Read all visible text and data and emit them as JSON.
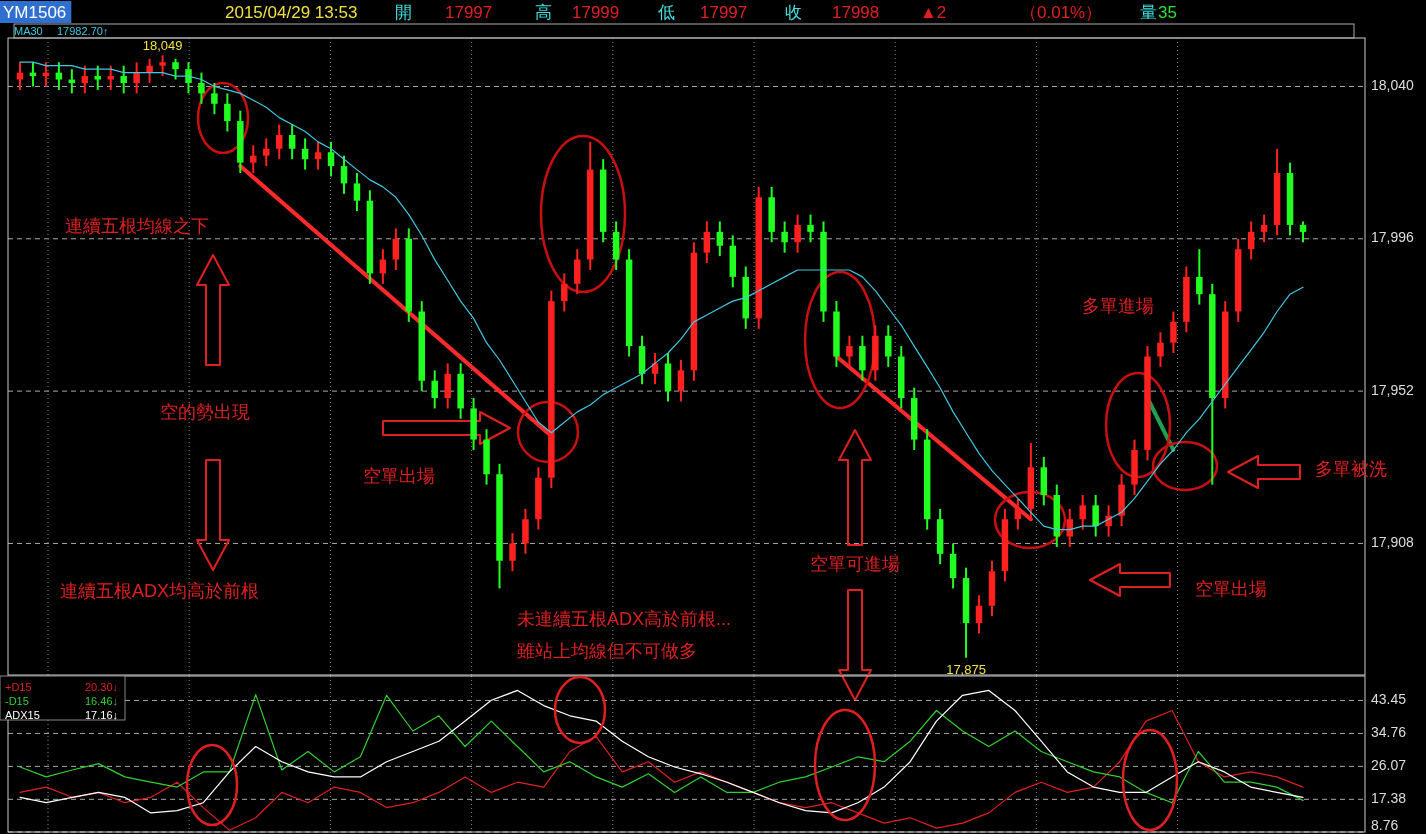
{
  "chart_data": [
    {
      "type": "candlestick",
      "title": "YM1506",
      "subtitle": "2015/04/29 13:53",
      "categories": [
        null,
        null,
        null,
        null,
        null,
        null,
        null,
        null,
        null,
        null,
        null,
        null,
        null,
        null,
        null,
        null,
        null,
        null,
        null,
        null,
        null,
        null,
        null,
        null,
        null,
        null,
        null,
        null,
        null,
        null,
        null,
        null,
        null,
        null,
        null,
        null,
        null,
        null,
        null,
        null,
        null,
        null,
        null,
        null,
        null,
        null,
        null,
        null,
        null,
        null,
        null,
        null,
        null,
        null,
        null,
        null,
        null,
        null,
        null,
        null,
        null,
        null,
        null,
        null,
        null,
        null,
        null,
        null,
        null,
        null,
        null,
        null,
        null,
        null,
        null,
        null,
        null,
        null,
        null,
        null,
        null,
        null,
        null,
        null,
        null,
        null,
        null,
        null,
        null,
        null,
        null,
        null,
        null,
        null,
        null,
        null,
        null,
        null,
        null,
        null
      ],
      "ohlc": [
        [
          18042,
          18047,
          18039,
          18044
        ],
        [
          18044,
          18047,
          18040,
          18043
        ],
        [
          18043,
          18047,
          18040,
          18044
        ],
        [
          18044,
          18047,
          18039,
          18042
        ],
        [
          18042,
          18045,
          18038,
          18041
        ],
        [
          18041,
          18046,
          18038,
          18043
        ],
        [
          18043,
          18046,
          18039,
          18042
        ],
        [
          18042,
          18046,
          18039,
          18043
        ],
        [
          18043,
          18046,
          18038,
          18041
        ],
        [
          18041,
          18047,
          18038,
          18044
        ],
        [
          18044,
          18048,
          18041,
          18046
        ],
        [
          18046,
          18049,
          18043,
          18047
        ],
        [
          18047,
          18048,
          18042,
          18045
        ],
        [
          18045,
          18047,
          18038,
          18041
        ],
        [
          18041,
          18044,
          18035,
          18038
        ],
        [
          18038,
          18041,
          18032,
          18035
        ],
        [
          18035,
          18038,
          18027,
          18030
        ],
        [
          18030,
          18033,
          18015,
          18018
        ],
        [
          18018,
          18023,
          18015,
          18020
        ],
        [
          18020,
          18025,
          18017,
          18022
        ],
        [
          18022,
          18029,
          18019,
          18026
        ],
        [
          18026,
          18029,
          18019,
          18022
        ],
        [
          18022,
          18025,
          18016,
          18019
        ],
        [
          18019,
          18024,
          18016,
          18021
        ],
        [
          18021,
          18024,
          18014,
          18017
        ],
        [
          18017,
          18020,
          18009,
          18012
        ],
        [
          18012,
          18015,
          18004,
          18007
        ],
        [
          18007,
          18010,
          17983,
          17986
        ],
        [
          17986,
          17993,
          17983,
          17990
        ],
        [
          17990,
          17999,
          17987,
          17996
        ],
        [
          17996,
          17999,
          17972,
          17975
        ],
        [
          17975,
          17978,
          17952,
          17955
        ],
        [
          17955,
          17958,
          17947,
          17950
        ],
        [
          17950,
          17960,
          17947,
          17957
        ],
        [
          17957,
          17960,
          17944,
          17947
        ],
        [
          17947,
          17950,
          17935,
          17938
        ],
        [
          17938,
          17941,
          17925,
          17928
        ],
        [
          17928,
          17931,
          17895,
          17903
        ],
        [
          17903,
          17911,
          17900,
          17908
        ],
        [
          17908,
          17918,
          17905,
          17915
        ],
        [
          17915,
          17930,
          17912,
          17927
        ],
        [
          17927,
          17981,
          17924,
          17978
        ],
        [
          17978,
          17986,
          17975,
          17983
        ],
        [
          17983,
          17993,
          17980,
          17990
        ],
        [
          17990,
          18024,
          17987,
          18016
        ],
        [
          18016,
          18019,
          17995,
          17998
        ],
        [
          17998,
          18001,
          17987,
          17990
        ],
        [
          17990,
          17993,
          17962,
          17965
        ],
        [
          17965,
          17968,
          17954,
          17957
        ],
        [
          17957,
          17963,
          17954,
          17960
        ],
        [
          17960,
          17963,
          17949,
          17952
        ],
        [
          17952,
          17961,
          17949,
          17958
        ],
        [
          17958,
          17995,
          17955,
          17992
        ],
        [
          17992,
          18001,
          17989,
          17998
        ],
        [
          17998,
          18001,
          17991,
          17994
        ],
        [
          17994,
          17997,
          17982,
          17985
        ],
        [
          17985,
          17988,
          17970,
          17973
        ],
        [
          17973,
          18011,
          17970,
          18008
        ],
        [
          18008,
          18011,
          17995,
          17998
        ],
        [
          17998,
          18001,
          17992,
          17995
        ],
        [
          17995,
          18003,
          17992,
          18000
        ],
        [
          18000,
          18003,
          17995,
          17998
        ],
        [
          17998,
          18001,
          17972,
          17975
        ],
        [
          17975,
          17978,
          17959,
          17962
        ],
        [
          17962,
          17968,
          17959,
          17965
        ],
        [
          17965,
          17968,
          17955,
          17958
        ],
        [
          17958,
          17971,
          17955,
          17968
        ],
        [
          17968,
          17971,
          17959,
          17962
        ],
        [
          17962,
          17965,
          17947,
          17950
        ],
        [
          17950,
          17953,
          17935,
          17938
        ],
        [
          17938,
          17941,
          17912,
          17915
        ],
        [
          17915,
          17918,
          17902,
          17905
        ],
        [
          17905,
          17908,
          17895,
          17898
        ],
        [
          17898,
          17901,
          17875,
          17885
        ],
        [
          17885,
          17893,
          17882,
          17890
        ],
        [
          17890,
          17903,
          17887,
          17900
        ],
        [
          17900,
          17918,
          17897,
          17915
        ],
        [
          17915,
          17921,
          17912,
          17918
        ],
        [
          17918,
          17937,
          17915,
          17930
        ],
        [
          17930,
          17933,
          17919,
          17922
        ],
        [
          17922,
          17925,
          17907,
          17910
        ],
        [
          17910,
          17918,
          17907,
          17915
        ],
        [
          17915,
          17922,
          17912,
          17919
        ],
        [
          17919,
          17922,
          17910,
          17913
        ],
        [
          17913,
          17919,
          17910,
          17916
        ],
        [
          17916,
          17928,
          17913,
          17925
        ],
        [
          17925,
          17938,
          17922,
          17935
        ],
        [
          17935,
          17965,
          17932,
          17962
        ],
        [
          17962,
          17969,
          17959,
          17966
        ],
        [
          17966,
          17975,
          17963,
          17972
        ],
        [
          17972,
          17988,
          17969,
          17985
        ],
        [
          17985,
          17993,
          17977,
          17980
        ],
        [
          17980,
          17983,
          17925,
          17950
        ],
        [
          17950,
          17978,
          17947,
          17975
        ],
        [
          17975,
          17996,
          17972,
          17993
        ],
        [
          17993,
          18001,
          17990,
          17998
        ],
        [
          17998,
          18003,
          17995,
          18000
        ],
        [
          18000,
          18022,
          17997,
          18015
        ],
        [
          18015,
          18018,
          17997,
          18000
        ],
        [
          18000,
          18001,
          17995,
          17998
        ]
      ],
      "series": [
        {
          "name": "MA30",
          "type": "line",
          "color": "#40c8e0",
          "values": [
            18047,
            18047,
            18046,
            18046,
            18046,
            18045,
            18045,
            18045,
            18044,
            18044,
            18044,
            18044,
            18043,
            18043,
            18042,
            18040,
            18039,
            18038,
            18036,
            18034,
            18031,
            18029,
            18027,
            18024,
            18022,
            18019,
            18016,
            18013,
            18011,
            18008,
            18003,
            17997,
            17990,
            17984,
            17978,
            17973,
            17966,
            17961,
            17955,
            17949,
            17943,
            17940,
            17943,
            17946,
            17948,
            17951,
            17953,
            17955,
            17957,
            17960,
            17963,
            17967,
            17972,
            17974,
            17976,
            17978,
            17979,
            17981,
            17983,
            17985,
            17987,
            17987,
            17987,
            17987,
            17987,
            17985,
            17981,
            17976,
            17971,
            17965,
            17959,
            17953,
            17946,
            17940,
            17934,
            17929,
            17925,
            17921,
            17917,
            17913,
            17912,
            17912,
            17913,
            17913,
            17915,
            17917,
            17921,
            17926,
            17931,
            17935,
            17940,
            17944,
            17949,
            17954,
            17959,
            17964,
            17969,
            17975,
            17980,
            17982
          ]
        },
        {
          "type": "line",
          "color": "#ff2a2a",
          "values": [
            null,
            null,
            null,
            null,
            null,
            null,
            null,
            null,
            null,
            null,
            null,
            null,
            null,
            null,
            null,
            null,
            null,
            18017,
            null,
            null,
            null,
            null,
            null,
            null,
            null,
            null,
            null,
            null,
            null,
            null,
            null,
            null,
            null,
            null,
            null,
            null,
            null,
            null,
            null,
            null,
            null,
            17939,
            null,
            null,
            null,
            null,
            null,
            null,
            null,
            null,
            null,
            null,
            null,
            null,
            null,
            null,
            null,
            null,
            null,
            null,
            null,
            null,
            null,
            null,
            null,
            null,
            null,
            null,
            null,
            null,
            null,
            null,
            null,
            null,
            null,
            null,
            null,
            null,
            null,
            null,
            null,
            null,
            null,
            null,
            null,
            null,
            null,
            null,
            null,
            null,
            null,
            null,
            null,
            null,
            null,
            null,
            null,
            null,
            null,
            null
          ]
        },
        {
          "type": "line",
          "color": "#ff2a2a",
          "values": [
            null,
            null,
            null,
            null,
            null,
            null,
            null,
            null,
            null,
            null,
            null,
            null,
            null,
            null,
            null,
            null,
            null,
            null,
            null,
            null,
            null,
            null,
            null,
            null,
            null,
            null,
            null,
            null,
            null,
            null,
            null,
            null,
            null,
            null,
            null,
            null,
            null,
            null,
            null,
            null,
            null,
            null,
            null,
            null,
            null,
            null,
            null,
            null,
            null,
            null,
            null,
            null,
            null,
            null,
            null,
            null,
            null,
            null,
            null,
            null,
            null,
            null,
            null,
            17962,
            null,
            null,
            null,
            null,
            null,
            null,
            null,
            null,
            null,
            null,
            null,
            null,
            null,
            null,
            17915,
            null,
            null,
            null,
            null,
            null,
            null,
            null,
            null,
            null,
            null,
            null,
            null,
            null,
            null,
            null,
            null,
            null,
            null,
            null,
            null,
            null
          ]
        },
        {
          "type": "line",
          "color": "#20a050",
          "values": [
            null,
            null,
            null,
            null,
            null,
            null,
            null,
            null,
            null,
            null,
            null,
            null,
            null,
            null,
            null,
            null,
            null,
            null,
            null,
            null,
            null,
            null,
            null,
            null,
            null,
            null,
            null,
            null,
            null,
            null,
            null,
            null,
            null,
            null,
            null,
            null,
            null,
            null,
            null,
            null,
            null,
            null,
            null,
            null,
            null,
            null,
            null,
            null,
            null,
            null,
            null,
            null,
            null,
            null,
            null,
            null,
            null,
            null,
            null,
            null,
            null,
            null,
            null,
            null,
            null,
            null,
            null,
            null,
            null,
            null,
            null,
            null,
            null,
            null,
            null,
            null,
            null,
            null,
            null,
            null,
            null,
            null,
            null,
            null,
            null,
            null,
            null,
            17950,
            null,
            17935,
            null,
            null,
            null,
            null,
            null,
            null,
            null,
            null,
            null,
            null
          ]
        }
      ],
      "ylim": [
        17870,
        18054
      ],
      "yticks": [
        {
          "value": 18040,
          "label": "18,040"
        },
        {
          "value": 17996,
          "label": "17,996"
        },
        {
          "value": 17952,
          "label": "17,952"
        },
        {
          "value": 17908,
          "label": "17,908"
        }
      ],
      "grid": true,
      "annotations": [
        "開",
        "17997",
        "高",
        "17999",
        "低",
        "17997",
        "收",
        "17998",
        "▲2",
        "（0.01%）",
        "量",
        "35",
        "17982.70↑",
        "連續五根均線之下",
        "空的勢出現",
        "連續五根ADX均高於前根",
        "空單出場",
        "未連續五根ADX高於前根...",
        "雖站上均線但不可做多",
        "空單可進場",
        "多單進場",
        "多單被洗",
        "空單出場",
        {
          "text": "18,049",
          "y": 18049
        },
        {
          "text": "17,875",
          "y": 17875
        }
      ]
    },
    {
      "type": "line",
      "categories": [
        null,
        null,
        null,
        null,
        null,
        null,
        null,
        null,
        null,
        null,
        null,
        null,
        null,
        null,
        null,
        null,
        null,
        null,
        null,
        null,
        null,
        null,
        null,
        null,
        null,
        null,
        null,
        null,
        null,
        null,
        null,
        null,
        null,
        null,
        null,
        null,
        null,
        null,
        null,
        null,
        null,
        null,
        null,
        null,
        null,
        null,
        null,
        null,
        null,
        null
      ],
      "series": [
        {
          "name": "+D15",
          "color": "#e02020",
          "values": [
            19.2,
            20.6,
            17.9,
            19.2,
            16.5,
            17.9,
            21.9,
            15.2,
            9.2,
            12.5,
            19.2,
            16.5,
            20.6,
            19.2,
            15.2,
            16.5,
            19.2,
            23.3,
            19.2,
            21.9,
            20.6,
            30,
            34,
            24.6,
            27.3,
            21.9,
            24.6,
            21.9,
            19.2,
            16.5,
            15.2,
            16.5,
            13.8,
            11.1,
            12.5,
            9.8,
            11.1,
            13.8,
            19.2,
            21.9,
            19.2,
            20.6,
            27.3,
            38,
            40.8,
            27.3,
            23.3,
            24.6,
            23.3,
            20.6
          ]
        },
        {
          "name": "-D15",
          "color": "#30d030",
          "values": [
            25.9,
            23.3,
            25.1,
            26.8,
            23.3,
            21.9,
            20.6,
            24.6,
            24.6,
            45,
            25.1,
            30,
            24.6,
            28.6,
            44.8,
            35.4,
            39.4,
            31.3,
            38,
            31.3,
            24.6,
            27.3,
            23.3,
            20.6,
            24.1,
            19.2,
            23.3,
            19.2,
            19.2,
            21.9,
            23.3,
            25.9,
            28.6,
            27.3,
            32.7,
            40.8,
            35.4,
            31.3,
            35.4,
            30,
            27.3,
            24.6,
            23.3,
            19.2,
            16.5,
            30,
            21.9,
            21.9,
            20.6,
            17.1
          ]
        },
        {
          "name": "ADX15",
          "color": "#ffffff",
          "values": [
            17.9,
            16.5,
            17.9,
            19.2,
            17.9,
            13.8,
            14.4,
            16.5,
            24.6,
            31.3,
            27.3,
            24.6,
            23.3,
            23.3,
            27.3,
            30,
            32.7,
            38,
            43.5,
            46.1,
            42.1,
            39.4,
            38,
            32.7,
            28.6,
            25.9,
            24.1,
            21.9,
            19.2,
            16.5,
            14.4,
            13.8,
            16.5,
            20.6,
            27.3,
            38,
            44.8,
            46.1,
            40.8,
            32.7,
            24.6,
            20.6,
            19.2,
            19.2,
            23.3,
            27.3,
            24.6,
            20.6,
            19.2,
            17.9
          ]
        }
      ],
      "ylim": [
        8.76,
        49.9
      ],
      "yticks": [
        43.45,
        34.76,
        26.07,
        17.38,
        8.76
      ],
      "grid": true,
      "legend": "top left",
      "annotations": [
        "20.30↓",
        "16.46↓",
        "17.16↓"
      ]
    }
  ]
}
